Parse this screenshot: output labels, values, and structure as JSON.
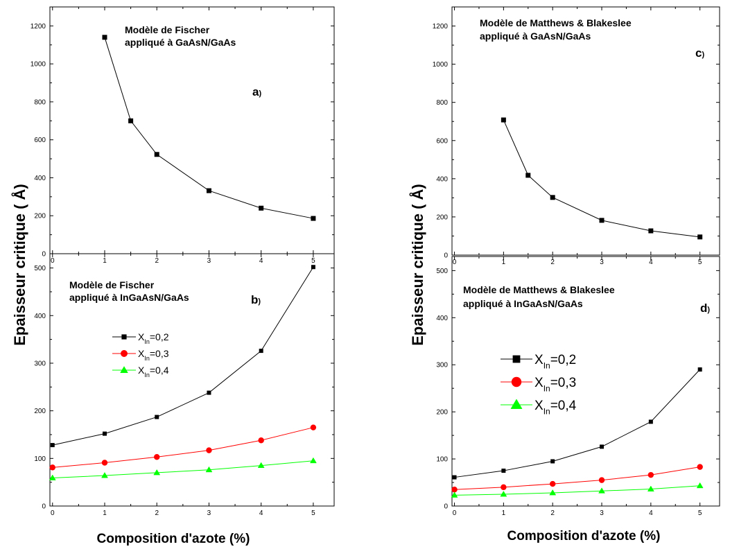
{
  "chart_data": [
    {
      "id": "a",
      "type": "line",
      "panel_label": "a)",
      "annotation": [
        "Modèle de Fischer",
        "appliqué à GaAsN/GaAs"
      ],
      "xlabel": "",
      "ylabel": "Epaisseur critique ( Å)",
      "xlim": [
        -0.05,
        5.4
      ],
      "ylim": [
        0,
        1300
      ],
      "xticks": [
        0,
        1,
        2,
        3,
        4,
        5
      ],
      "yticks": [
        0,
        200,
        400,
        600,
        800,
        1000,
        1200
      ],
      "series": [
        {
          "x": [
            1,
            1.5,
            2,
            3,
            4,
            5
          ],
          "y": [
            1140,
            700,
            523,
            332,
            240,
            186
          ],
          "color": "#000000",
          "marker": "square"
        }
      ]
    },
    {
      "id": "b",
      "type": "line",
      "panel_label": "b)",
      "annotation": [
        "Modèle de Fischer",
        "appliqué à InGaAsN/GaAs"
      ],
      "xlabel": "Composition d'azote (%)",
      "ylabel": "Epaisseur critique ( Å)",
      "xlim": [
        -0.05,
        5.4
      ],
      "ylim": [
        0,
        530
      ],
      "xticks": [
        0,
        1,
        2,
        3,
        4,
        5
      ],
      "yticks": [
        0,
        100,
        200,
        300,
        400,
        500
      ],
      "legend": "top-left",
      "series": [
        {
          "name": "X",
          "subscript": "In",
          "value_text": "=0,2",
          "x": [
            0,
            1,
            2,
            3,
            4,
            5
          ],
          "y": [
            128,
            152,
            187,
            238,
            326,
            502
          ],
          "color": "#000000",
          "marker": "square"
        },
        {
          "name": "X",
          "subscript": "In",
          "value_text": "=0,3",
          "x": [
            0,
            1,
            2,
            3,
            4,
            5
          ],
          "y": [
            81,
            91,
            103,
            117,
            138,
            165
          ],
          "color": "#ff0000",
          "marker": "circle"
        },
        {
          "name": "X",
          "subscript": "In",
          "value_text": "=0,4",
          "x": [
            0,
            1,
            2,
            3,
            4,
            5
          ],
          "y": [
            59,
            64,
            70,
            76,
            85,
            95
          ],
          "color": "#00ff00",
          "marker": "triangle"
        }
      ]
    },
    {
      "id": "c",
      "type": "line",
      "panel_label": "c)",
      "annotation": [
        "Modèle de Matthews & Blakeslee",
        "appliqué à GaAsN/GaAs"
      ],
      "xlabel": "",
      "ylabel": "Epaisseur critique ( Å)",
      "xlim": [
        -0.05,
        5.4
      ],
      "ylim": [
        0,
        1300
      ],
      "xticks": [
        0,
        1,
        2,
        3,
        4,
        5
      ],
      "yticks": [
        0,
        200,
        400,
        600,
        800,
        1000,
        1200
      ],
      "series": [
        {
          "x": [
            1,
            1.5,
            2,
            3,
            4,
            5
          ],
          "y": [
            708,
            418,
            302,
            182,
            127,
            95
          ],
          "color": "#000000",
          "marker": "square"
        }
      ]
    },
    {
      "id": "d",
      "type": "line",
      "panel_label": "d)",
      "annotation": [
        "Modèle de Matthews & Blakeslee",
        "appliqué à InGaAsN/GaAs"
      ],
      "xlabel": "Composition d'azote (%)",
      "ylabel": "Epaisseur critique ( Å)",
      "xlim": [
        -0.05,
        5.4
      ],
      "ylim": [
        0,
        530
      ],
      "xticks": [
        0,
        1,
        2,
        3,
        4,
        5
      ],
      "yticks": [
        0,
        100,
        200,
        300,
        400,
        500
      ],
      "legend": "middle-left",
      "series": [
        {
          "name": "X",
          "subscript": "In",
          "value_text": "=0,2",
          "x": [
            0,
            1,
            2,
            3,
            4,
            5
          ],
          "y": [
            61,
            75,
            95,
            126,
            179,
            290
          ],
          "color": "#000000",
          "marker": "square"
        },
        {
          "name": "X",
          "subscript": "In",
          "value_text": "=0,3",
          "x": [
            0,
            1,
            2,
            3,
            4,
            5
          ],
          "y": [
            35,
            40,
            47,
            55,
            66,
            83
          ],
          "color": "#ff0000",
          "marker": "circle"
        },
        {
          "name": "X",
          "subscript": "In",
          "value_text": "=0,4",
          "x": [
            0,
            1,
            2,
            3,
            4,
            5
          ],
          "y": [
            23,
            25,
            28,
            32,
            36,
            43
          ],
          "color": "#00ff00",
          "marker": "triangle"
        }
      ]
    }
  ]
}
